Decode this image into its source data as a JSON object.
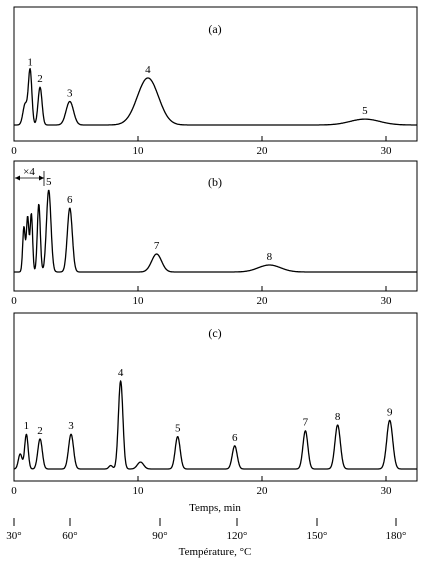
{
  "figure": {
    "x_axis_label": "Temps, min",
    "temperature_axis_label": "Température, °C",
    "time_ticks": [
      "0",
      "10",
      "20",
      "30"
    ],
    "temperature_ticks": [
      "30°",
      "60°",
      "90°",
      "120°",
      "150°",
      "180°"
    ]
  },
  "chart_data": [
    {
      "type": "line",
      "panel_label": "(a)",
      "xlim": [
        0,
        32.5
      ],
      "x_ticks": [
        0,
        10,
        20,
        30
      ],
      "peaks": [
        {
          "label": "",
          "time": 0.9,
          "height": 0.25
        },
        {
          "label": "1",
          "time": 1.3,
          "height": 0.65
        },
        {
          "label": "2",
          "time": 2.1,
          "height": 0.45
        },
        {
          "label": "3",
          "time": 4.5,
          "height": 0.28
        },
        {
          "label": "4",
          "time": 10.8,
          "height": 0.56
        },
        {
          "label": "5",
          "time": 28.3,
          "height": 0.07
        }
      ]
    },
    {
      "type": "line",
      "panel_label": "(b)",
      "annotation": "×4",
      "xlim": [
        0,
        32.5
      ],
      "x_ticks": [
        0,
        10,
        20,
        30
      ],
      "peaks": [
        {
          "label": "",
          "time": 0.8,
          "height": 0.45
        },
        {
          "label": "",
          "time": 1.1,
          "height": 0.55
        },
        {
          "label": "",
          "time": 1.4,
          "height": 0.58
        },
        {
          "label": "",
          "time": 2.0,
          "height": 0.68
        },
        {
          "label": "5",
          "time": 2.8,
          "height": 0.82
        },
        {
          "label": "6",
          "time": 4.5,
          "height": 0.64
        },
        {
          "label": "7",
          "time": 11.5,
          "height": 0.18
        },
        {
          "label": "8",
          "time": 20.6,
          "height": 0.07
        }
      ]
    },
    {
      "type": "line",
      "panel_label": "(c)",
      "xlim": [
        0,
        32.5
      ],
      "x_ticks": [
        0,
        10,
        20,
        30
      ],
      "peaks": [
        {
          "label": "",
          "time": 0.5,
          "height": 0.13
        },
        {
          "label": "1",
          "time": 1.0,
          "height": 0.3
        },
        {
          "label": "2",
          "time": 2.1,
          "height": 0.26
        },
        {
          "label": "3",
          "time": 4.6,
          "height": 0.3
        },
        {
          "label": "",
          "time": 7.8,
          "height": 0.03
        },
        {
          "label": "4",
          "time": 8.6,
          "height": 0.76
        },
        {
          "label": "",
          "time": 10.2,
          "height": 0.06
        },
        {
          "label": "5",
          "time": 13.2,
          "height": 0.28
        },
        {
          "label": "6",
          "time": 17.8,
          "height": 0.2
        },
        {
          "label": "7",
          "time": 23.5,
          "height": 0.33
        },
        {
          "label": "8",
          "time": 26.1,
          "height": 0.38
        },
        {
          "label": "9",
          "time": 30.3,
          "height": 0.42
        }
      ]
    }
  ]
}
